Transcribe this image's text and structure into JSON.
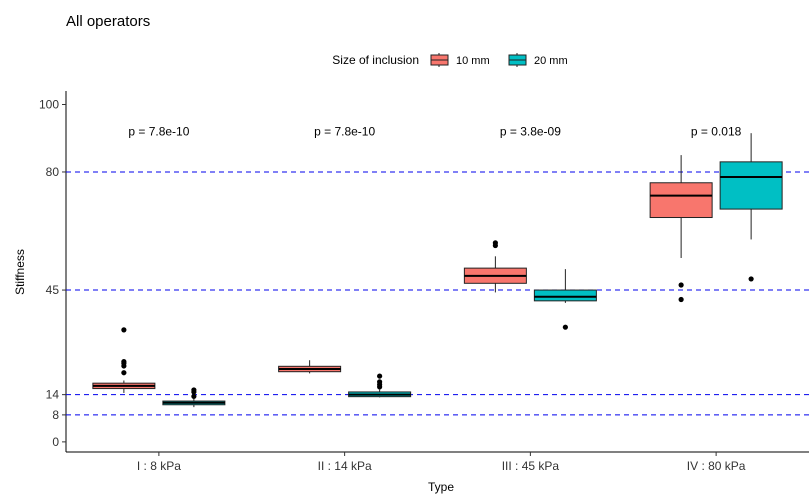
{
  "chart_data": {
    "type": "box",
    "title": "All operators",
    "xlabel": "Type",
    "ylabel": "Stiffness",
    "ylim": [
      -3,
      104
    ],
    "yticks": [
      0,
      8,
      14,
      45,
      80,
      100
    ],
    "reference_lines": [
      8,
      14,
      45,
      80
    ],
    "reference_line_color": "#0000ee",
    "legend": {
      "title": "Size of inclusion",
      "position": "top",
      "entries": [
        {
          "label": "10 mm",
          "color": "#f8766d"
        },
        {
          "label": "20 mm",
          "color": "#00bfc4"
        }
      ]
    },
    "categories": [
      "I : 8 kPa",
      "II : 14 kPa",
      "III : 45 kPa",
      "IV : 80  kPa"
    ],
    "p_values": [
      "p = 7.8e-10",
      "p = 7.8e-10",
      "p = 3.8e-09",
      "p = 0.018"
    ],
    "series": [
      {
        "name": "10 mm",
        "color": "#f8766d",
        "boxes": [
          {
            "min": 14.5,
            "q1": 15.8,
            "median": 16.6,
            "q3": 17.4,
            "max": 18.2,
            "outliers": [
              20.5,
              22.5,
              23.3,
              23.8,
              33.2
            ]
          },
          {
            "min": 20.3,
            "q1": 20.8,
            "median": 21.6,
            "q3": 22.4,
            "max": 24.2,
            "outliers": []
          },
          {
            "min": 44.3,
            "q1": 47.0,
            "median": 49.2,
            "q3": 51.5,
            "max": 55.0,
            "outliers": [
              58.2,
              59.0
            ]
          },
          {
            "min": 54.5,
            "q1": 66.5,
            "median": 73.0,
            "q3": 76.8,
            "max": 85.0,
            "outliers": [
              42.2,
              46.5
            ]
          }
        ]
      },
      {
        "name": "20 mm",
        "color": "#00bfc4",
        "boxes": [
          {
            "min": 10.3,
            "q1": 11.0,
            "median": 11.6,
            "q3": 12.1,
            "max": 14.0,
            "outliers": [
              13.5,
              14.8,
              15.4
            ]
          },
          {
            "min": 13.2,
            "q1": 13.4,
            "median": 14.0,
            "q3": 14.8,
            "max": 15.5,
            "outliers": [
              16.3,
              17.0,
              17.8,
              19.5
            ]
          },
          {
            "min": 41.2,
            "q1": 41.8,
            "median": 43.0,
            "q3": 45.0,
            "max": 51.2,
            "outliers": [
              34.0
            ]
          },
          {
            "min": 60.0,
            "q1": 69.0,
            "median": 78.5,
            "q3": 83.0,
            "max": 91.5,
            "outliers": [
              48.3
            ]
          }
        ]
      }
    ]
  }
}
